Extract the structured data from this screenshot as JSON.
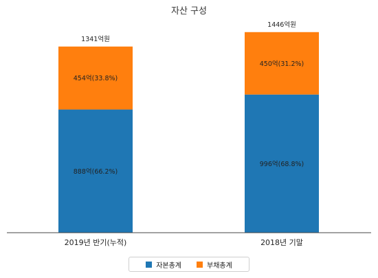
{
  "chart_data": {
    "type": "bar",
    "stacked": true,
    "title": "자산 구성",
    "categories": [
      "2019년 반기(누적)",
      "2018년 기말"
    ],
    "series": [
      {
        "name": "자본총계",
        "color": "#1f77b4",
        "values": [
          888,
          996
        ],
        "labels": [
          "888억(66.2%)",
          "996억(68.8%)"
        ]
      },
      {
        "name": "부채총계",
        "color": "#ff7f0e",
        "values": [
          454,
          450
        ],
        "labels": [
          "454억(33.8%)",
          "450억(31.2%)"
        ]
      }
    ],
    "totals": [
      1341,
      1446
    ],
    "total_labels": [
      "1341억원",
      "1446억원"
    ],
    "ylim": [
      0,
      1600
    ],
    "grid": false,
    "legend_position": "bottom"
  }
}
